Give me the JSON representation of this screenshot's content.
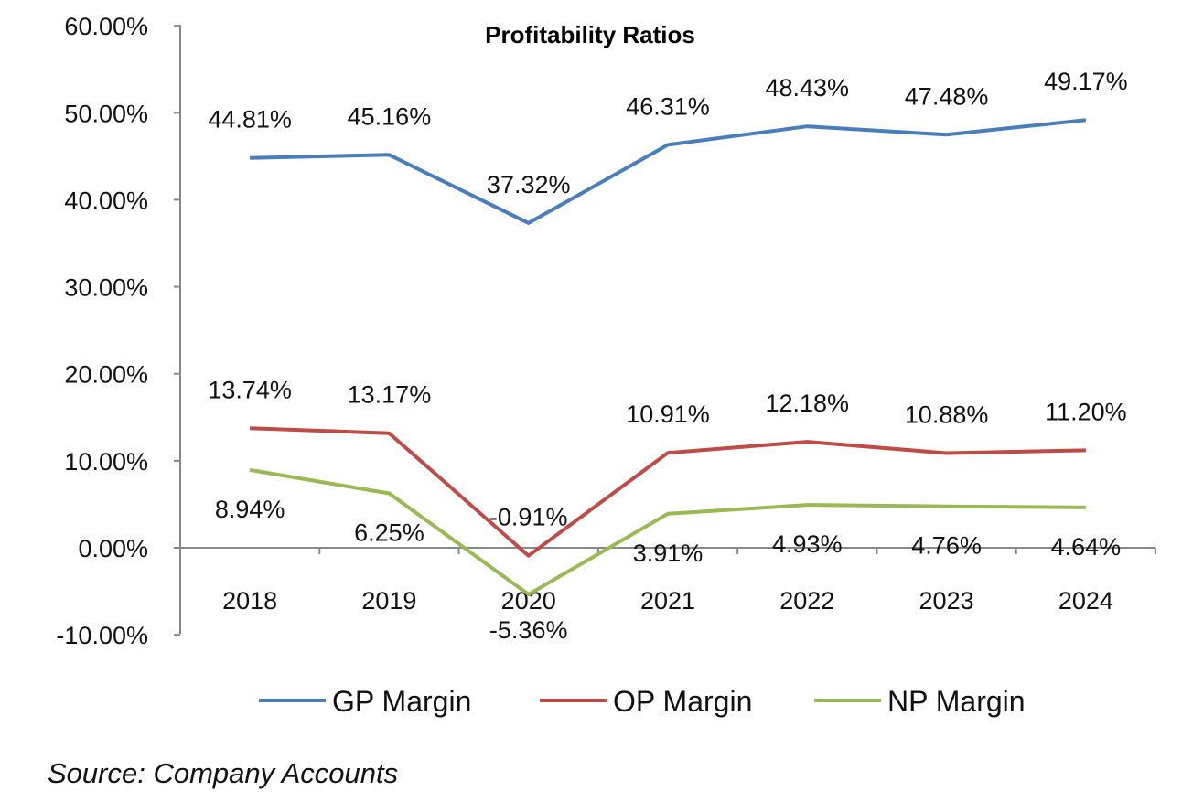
{
  "chart_data": {
    "type": "line",
    "title": "Profitability Ratios",
    "categories": [
      "2018",
      "2019",
      "2020",
      "2021",
      "2022",
      "2023",
      "2024"
    ],
    "ylim": [
      -10,
      60
    ],
    "y_ticks": [
      -10,
      0,
      10,
      20,
      30,
      40,
      50,
      60
    ],
    "y_tick_labels": [
      "-10.00%",
      "0.00%",
      "10.00%",
      "20.00%",
      "30.00%",
      "40.00%",
      "50.00%",
      "60.00%"
    ],
    "grid": false,
    "legend_position": "bottom",
    "series": [
      {
        "name": "GP Margin",
        "color": "#4a7ebb",
        "values": [
          44.81,
          45.16,
          37.32,
          46.31,
          48.43,
          47.48,
          49.17
        ],
        "labels": [
          "44.81%",
          "45.16%",
          "37.32%",
          "46.31%",
          "48.43%",
          "47.48%",
          "49.17%"
        ]
      },
      {
        "name": "OP Margin",
        "color": "#be4b48",
        "values": [
          13.74,
          13.17,
          -0.91,
          10.91,
          12.18,
          10.88,
          11.2
        ],
        "labels": [
          "13.74%",
          "13.17%",
          "-0.91%",
          "10.91%",
          "12.18%",
          "10.88%",
          "11.20%"
        ]
      },
      {
        "name": "NP Margin",
        "color": "#98b954",
        "values": [
          8.94,
          6.25,
          -5.36,
          3.91,
          4.93,
          4.76,
          4.64
        ],
        "labels": [
          "8.94%",
          "6.25%",
          "-5.36%",
          "3.91%",
          "4.93%",
          "4.76%",
          "4.64%"
        ]
      }
    ]
  },
  "footer": {
    "source": "Source: Company Accounts"
  }
}
